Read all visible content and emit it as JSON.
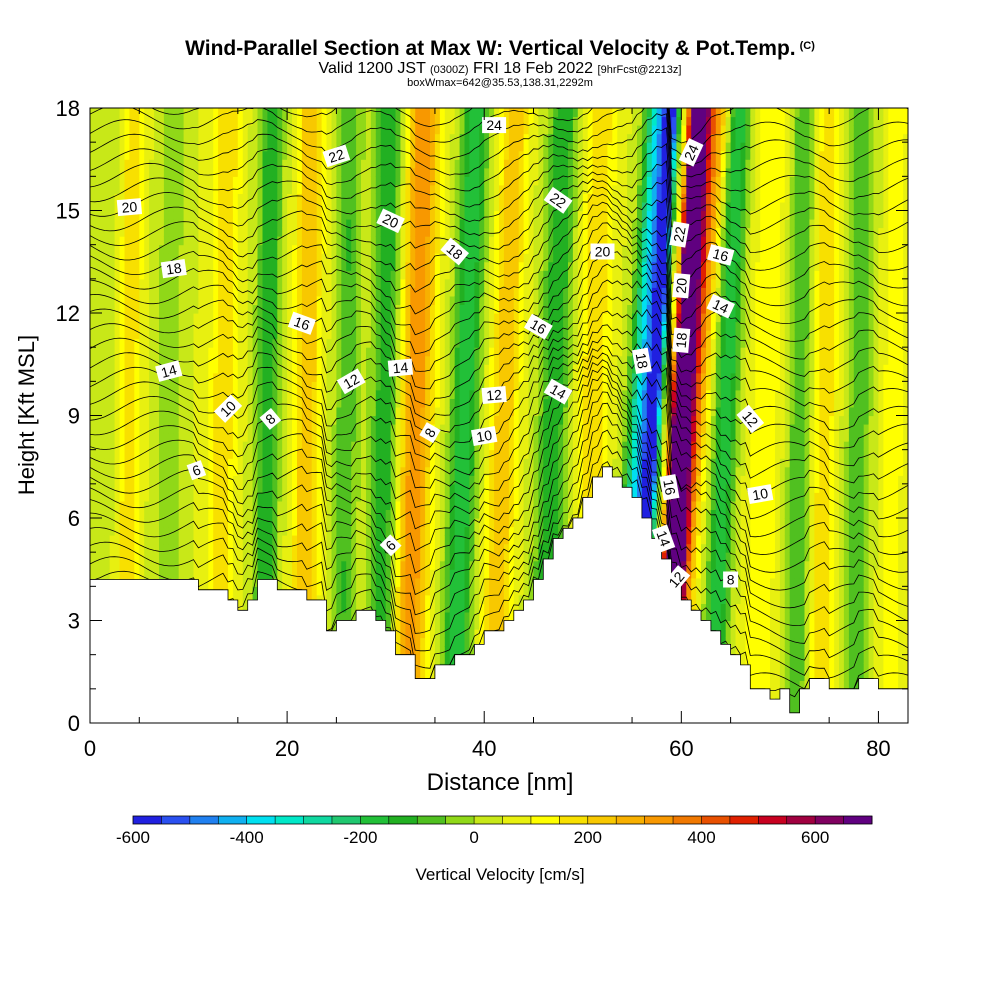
{
  "header": {
    "title": "Wind-Parallel Section at Max W: Vertical Velocity & Pot.Temp.",
    "copyright": "(C)",
    "valid_prefix": "Valid 1200 JST",
    "valid_utc": "(0300Z)",
    "valid_date": "FRI 18 Feb 2022",
    "forecast": "[9hrFcst@2213z]",
    "box_info": "boxWmax=642@35.53,138.31,2292m"
  },
  "chart_data": {
    "type": "heatmap",
    "xlabel": "Distance [nm]",
    "ylabel": "Height [Kft MSL]",
    "xlim": [
      0,
      83
    ],
    "ylim": [
      0,
      18
    ],
    "x_ticks": [
      0,
      20,
      40,
      60,
      80
    ],
    "y_ticks": [
      0,
      3,
      6,
      9,
      12,
      15,
      18
    ],
    "x_tick_labels": [
      "0",
      "20",
      "40",
      "60",
      "80"
    ],
    "y_tick_labels": [
      "0",
      "3",
      "6",
      "9",
      "12",
      "15",
      "18"
    ],
    "colorbar": {
      "label": "Vertical Velocity [cm/s]",
      "min": -600,
      "max": 700,
      "step": 50,
      "tick_values": [
        -600,
        -400,
        -200,
        0,
        200,
        400,
        600
      ],
      "tick_labels": [
        "-600",
        "-400",
        "-200",
        "0",
        "200",
        "400",
        "600"
      ],
      "colors": [
        "#2020e0",
        "#2a50f0",
        "#2080f0",
        "#10b0f0",
        "#00e0f0",
        "#00e8c8",
        "#10d8a0",
        "#20c870",
        "#22c038",
        "#22b022",
        "#50c020",
        "#90d818",
        "#c8e818",
        "#e8f010",
        "#ffff00",
        "#f8e000",
        "#f8c800",
        "#f8b000",
        "#f89800",
        "#f07800",
        "#e85000",
        "#e02000",
        "#c80020",
        "#a00040",
        "#800060",
        "#600080"
      ]
    },
    "terrain": {
      "x": [
        0,
        11,
        11,
        14,
        14,
        15,
        15,
        16,
        16,
        17,
        17,
        19,
        19,
        22,
        22,
        24,
        24,
        25,
        25,
        27,
        27,
        29,
        29,
        30,
        30,
        31,
        31,
        33,
        33,
        35,
        35,
        37,
        37,
        39,
        39,
        40,
        40,
        42,
        42,
        43,
        43,
        44,
        44,
        45,
        45,
        46,
        46,
        47,
        47,
        48,
        48,
        49,
        49,
        50,
        50,
        51,
        51,
        52,
        52,
        53,
        53,
        54,
        54,
        55,
        55,
        56,
        56,
        57,
        57,
        58,
        58,
        59,
        59,
        60,
        60,
        61,
        61,
        62,
        62,
        63,
        63,
        64,
        64,
        65,
        65,
        66,
        66,
        67,
        67,
        69,
        69,
        70,
        70,
        71,
        71,
        72,
        72,
        73,
        73,
        75,
        75,
        78,
        78,
        80,
        80,
        83
      ],
      "y": [
        4.2,
        4.2,
        3.9,
        3.9,
        3.6,
        3.6,
        3.3,
        3.3,
        3.6,
        3.6,
        4.2,
        4.2,
        3.9,
        3.9,
        3.6,
        3.6,
        2.7,
        2.7,
        3.0,
        3.0,
        3.3,
        3.3,
        3.0,
        3.0,
        2.7,
        2.7,
        2.0,
        2.0,
        1.3,
        1.3,
        1.7,
        1.7,
        2.0,
        2.0,
        2.3,
        2.3,
        2.7,
        2.7,
        3.0,
        3.0,
        3.3,
        3.3,
        3.6,
        3.6,
        4.2,
        4.2,
        4.8,
        4.8,
        5.4,
        5.4,
        5.7,
        5.7,
        6.0,
        6.0,
        6.6,
        6.6,
        7.2,
        7.2,
        7.5,
        7.5,
        7.2,
        7.2,
        6.9,
        6.9,
        6.6,
        6.6,
        6.0,
        6.0,
        5.4,
        5.4,
        4.8,
        4.8,
        4.2,
        4.2,
        3.6,
        3.6,
        3.3,
        3.3,
        3.0,
        3.0,
        2.7,
        2.7,
        2.3,
        2.3,
        2.0,
        2.0,
        1.7,
        1.7,
        1.0,
        1.0,
        0.7,
        0.7,
        1.0,
        1.0,
        0.3,
        0.3,
        1.0,
        1.0,
        1.3,
        1.3,
        1.0,
        1.0,
        1.3,
        1.3,
        1.0,
        1.0
      ]
    },
    "background_velocity_cm_s": 50,
    "velocity_bands": [
      {
        "x": 1,
        "w": 1.2,
        "v": -50,
        "tilt": 0.05
      },
      {
        "x": 4,
        "w": 1.0,
        "v": 150,
        "tilt": 0.05
      },
      {
        "x": 8,
        "w": 1.2,
        "v": -100,
        "tilt": 0.05
      },
      {
        "x": 13.5,
        "w": 1.3,
        "v": 150,
        "tilt": 0.06
      },
      {
        "x": 18,
        "w": 1.2,
        "v": -200,
        "tilt": 0.05
      },
      {
        "x": 22,
        "w": 1.3,
        "v": 200,
        "tilt": 0.05
      },
      {
        "x": 26,
        "w": 1.2,
        "v": -150,
        "tilt": 0.05
      },
      {
        "x": 30,
        "w": 1.5,
        "v": -200,
        "tilt": 0.05
      },
      {
        "x": 33,
        "w": 1.7,
        "v": 300,
        "tilt": 0.1
      },
      {
        "x": 38,
        "w": 1.4,
        "v": -250,
        "tilt": 0.13
      },
      {
        "x": 42,
        "w": 1.4,
        "v": 200,
        "tilt": 0.13
      },
      {
        "x": 47,
        "w": 1.5,
        "v": -200,
        "tilt": 0.12
      },
      {
        "x": 51,
        "w": 1.5,
        "v": 150,
        "tilt": 0.1
      },
      {
        "x": 56,
        "w": 1.3,
        "v": -450,
        "tilt": 0.2
      },
      {
        "x": 57.2,
        "w": 0.7,
        "v": -600,
        "tilt": 0.2
      },
      {
        "x": 60.3,
        "w": 1.0,
        "v": 650,
        "tilt": 0.2
      },
      {
        "x": 59.6,
        "w": 0.7,
        "v": 450,
        "tilt": 0.2
      },
      {
        "x": 61.5,
        "w": 1.2,
        "v": 250,
        "tilt": 0.25
      },
      {
        "x": 64.5,
        "w": 1.2,
        "v": -250,
        "tilt": 0.15
      },
      {
        "x": 68.5,
        "w": 1.5,
        "v": 100,
        "tilt": 0.1
      },
      {
        "x": 72,
        "w": 1.2,
        "v": -150,
        "tilt": 0.05
      },
      {
        "x": 74.5,
        "w": 1.2,
        "v": 150,
        "tilt": 0.05
      },
      {
        "x": 78,
        "w": 1.2,
        "v": -150,
        "tilt": 0.05
      },
      {
        "x": 81.5,
        "w": 1.0,
        "v": 100,
        "tilt": 0.05
      }
    ],
    "contour_labels": [
      {
        "text": "20",
        "x": 4,
        "y": 15.1,
        "angle": -5
      },
      {
        "text": "22",
        "x": 25,
        "y": 16.6,
        "angle": -18
      },
      {
        "text": "24",
        "x": 41,
        "y": 17.5,
        "angle": 0
      },
      {
        "text": "18",
        "x": 8.5,
        "y": 13.3,
        "angle": -8
      },
      {
        "text": "20",
        "x": 30.5,
        "y": 14.7,
        "angle": 25
      },
      {
        "text": "22",
        "x": 47.5,
        "y": 15.3,
        "angle": 35
      },
      {
        "text": "18",
        "x": 37,
        "y": 13.8,
        "angle": 40
      },
      {
        "text": "20",
        "x": 52,
        "y": 13.8,
        "angle": 0
      },
      {
        "text": "22",
        "x": 59.8,
        "y": 14.3,
        "angle": -80
      },
      {
        "text": "24",
        "x": 61,
        "y": 16.7,
        "angle": -65
      },
      {
        "text": "16",
        "x": 21.5,
        "y": 11.7,
        "angle": 20
      },
      {
        "text": "16",
        "x": 45.5,
        "y": 11.6,
        "angle": 30
      },
      {
        "text": "16",
        "x": 64,
        "y": 13.7,
        "angle": 15
      },
      {
        "text": "14",
        "x": 64,
        "y": 12.2,
        "angle": 25
      },
      {
        "text": "20",
        "x": 60,
        "y": 12.8,
        "angle": -85
      },
      {
        "text": "18",
        "x": 60,
        "y": 11.2,
        "angle": -85
      },
      {
        "text": "18",
        "x": 56,
        "y": 10.6,
        "angle": 80
      },
      {
        "text": "14",
        "x": 8,
        "y": 10.3,
        "angle": -15
      },
      {
        "text": "12",
        "x": 26.5,
        "y": 10.0,
        "angle": -30
      },
      {
        "text": "14",
        "x": 31.5,
        "y": 10.4,
        "angle": -5
      },
      {
        "text": "12",
        "x": 41,
        "y": 9.6,
        "angle": -5
      },
      {
        "text": "14",
        "x": 47.5,
        "y": 9.7,
        "angle": 30
      },
      {
        "text": "10",
        "x": 14,
        "y": 9.2,
        "angle": -45
      },
      {
        "text": "8",
        "x": 18.3,
        "y": 8.9,
        "angle": -40
      },
      {
        "text": "8",
        "x": 34.5,
        "y": 8.5,
        "angle": -60
      },
      {
        "text": "10",
        "x": 40,
        "y": 8.4,
        "angle": -10
      },
      {
        "text": "12",
        "x": 67,
        "y": 8.9,
        "angle": 50
      },
      {
        "text": "6",
        "x": 10.8,
        "y": 7.4,
        "angle": -20
      },
      {
        "text": "16",
        "x": 58.8,
        "y": 6.9,
        "angle": 80
      },
      {
        "text": "10",
        "x": 68,
        "y": 6.7,
        "angle": -10
      },
      {
        "text": "6",
        "x": 30.5,
        "y": 5.2,
        "angle": -45
      },
      {
        "text": "14",
        "x": 58.2,
        "y": 5.4,
        "angle": 70
      },
      {
        "text": "12",
        "x": 59.5,
        "y": 4.2,
        "angle": -50
      },
      {
        "text": "8",
        "x": 65,
        "y": 4.2,
        "angle": 0
      }
    ]
  }
}
